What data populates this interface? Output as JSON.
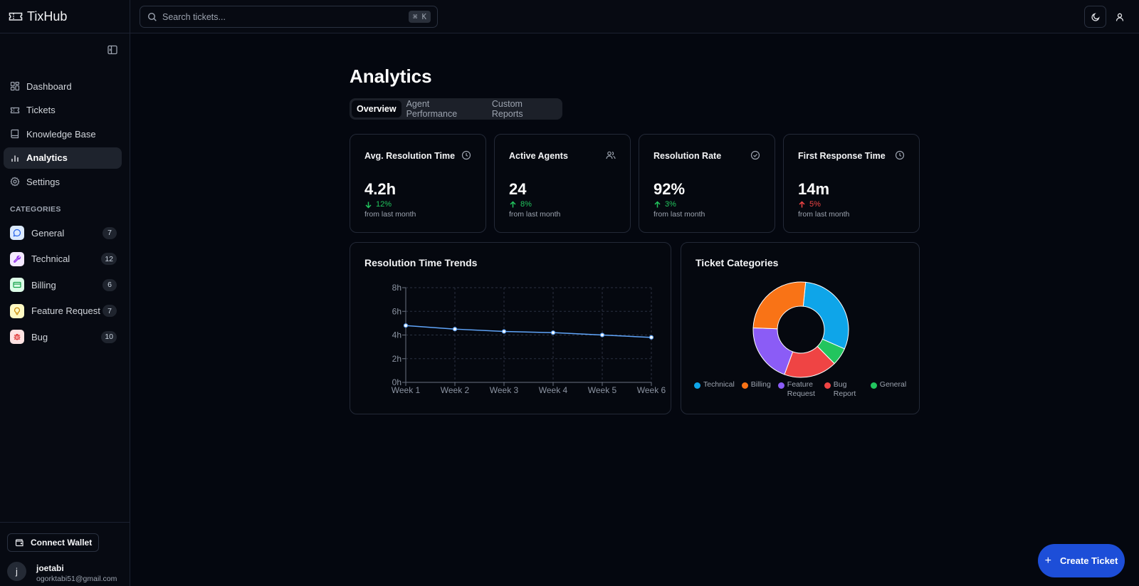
{
  "app": {
    "name": "TixHub"
  },
  "search": {
    "placeholder": "Search tickets...",
    "shortcut": "⌘ K"
  },
  "sidebar": {
    "items": [
      {
        "label": "Dashboard",
        "icon": "dashboard-icon"
      },
      {
        "label": "Tickets",
        "icon": "ticket-icon"
      },
      {
        "label": "Knowledge Base",
        "icon": "book-icon"
      },
      {
        "label": "Analytics",
        "icon": "bar-chart-icon",
        "active": true
      },
      {
        "label": "Settings",
        "icon": "gear-icon"
      }
    ],
    "categories_heading": "CATEGORIES",
    "categories": [
      {
        "label": "General",
        "count": "7",
        "icon": "chat-icon",
        "color": "#3b82f6"
      },
      {
        "label": "Technical",
        "count": "12",
        "icon": "wrench-icon",
        "color": "#a855f7"
      },
      {
        "label": "Billing",
        "count": "6",
        "icon": "credit-card-icon",
        "color": "#22c55e"
      },
      {
        "label": "Feature Request",
        "count": "7",
        "icon": "lightbulb-icon",
        "color": "#eab308"
      },
      {
        "label": "Bug",
        "count": "10",
        "icon": "bug-icon",
        "color": "#ef4444"
      }
    ],
    "wallet_button": "Connect Wallet",
    "user": {
      "initial": "j",
      "name": "joetabi",
      "email": "ogorktabi51@gmail.com"
    }
  },
  "main": {
    "title": "Analytics",
    "tabs": [
      {
        "label": "Overview",
        "active": true
      },
      {
        "label": "Agent Performance"
      },
      {
        "label": "Custom Reports"
      }
    ],
    "stats": [
      {
        "title": "Avg. Resolution Time",
        "value": "4.2h",
        "change": "12%",
        "direction": "down",
        "change_color": "#22c55e",
        "sub": "from last month",
        "icon": "clock-icon"
      },
      {
        "title": "Active Agents",
        "value": "24",
        "change": "8%",
        "direction": "up",
        "change_color": "#22c55e",
        "sub": "from last month",
        "icon": "users-icon"
      },
      {
        "title": "Resolution Rate",
        "value": "92%",
        "change": "3%",
        "direction": "up",
        "change_color": "#22c55e",
        "sub": "from last month",
        "icon": "check-circle-icon"
      },
      {
        "title": "First Response Time",
        "value": "14m",
        "change": "5%",
        "direction": "up",
        "change_color": "#ef4444",
        "sub": "from last month",
        "icon": "clock-icon"
      }
    ],
    "trend_title": "Resolution Time Trends",
    "categories_title": "Ticket Categories"
  },
  "chart_data": [
    {
      "type": "line",
      "title": "Resolution Time Trends",
      "x": [
        "Week 1",
        "Week 2",
        "Week 3",
        "Week 4",
        "Week 5",
        "Week 6"
      ],
      "series": [
        {
          "values": [
            4.8,
            4.5,
            4.3,
            4.2,
            4.0,
            3.8
          ],
          "color": "#60a5fa"
        }
      ],
      "ylim": [
        0,
        8
      ],
      "yticks": [
        "0h",
        "2h",
        "4h",
        "6h",
        "8h"
      ],
      "ytick_values": [
        0,
        2,
        4,
        6,
        8
      ],
      "grid": true
    },
    {
      "type": "pie",
      "title": "Ticket Categories",
      "donut": true,
      "labels": [
        "Technical",
        "General",
        "Bug Report",
        "Feature Request",
        "Billing"
      ],
      "values": [
        30,
        6,
        18,
        20,
        26
      ],
      "colors": [
        "#0ea5e9",
        "#22c55e",
        "#ef4444",
        "#8b5cf6",
        "#f97316"
      ],
      "legend": [
        {
          "label": "Technical",
          "color": "#0ea5e9"
        },
        {
          "label": "Billing",
          "color": "#f97316"
        },
        {
          "label": "Feature Request",
          "color": "#8b5cf6"
        },
        {
          "label": "Bug Report",
          "color": "#ef4444"
        },
        {
          "label": "General",
          "color": "#22c55e"
        }
      ],
      "legend_position": "bottom"
    }
  ],
  "fab": {
    "label": "Create Ticket"
  },
  "colors": {
    "accent": "#1d4ed8",
    "background": "#04070f"
  }
}
